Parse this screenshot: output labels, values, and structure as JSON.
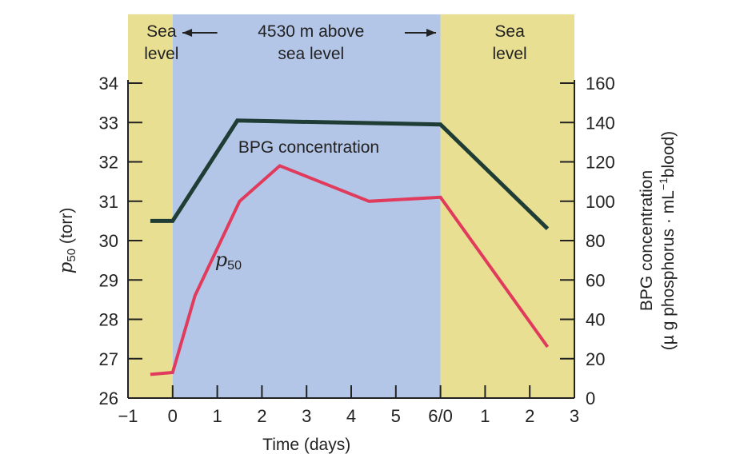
{
  "chart_data": {
    "type": "line",
    "xlabel": "Time (days)",
    "x_ticks": [
      {
        "x": -1,
        "label": "−1"
      },
      {
        "x": 0,
        "label": "0"
      },
      {
        "x": 1,
        "label": "1"
      },
      {
        "x": 2,
        "label": "2"
      },
      {
        "x": 3,
        "label": "3"
      },
      {
        "x": 4,
        "label": "4"
      },
      {
        "x": 5,
        "label": "5"
      },
      {
        "x": 6,
        "label": "6/0"
      },
      {
        "x": 7,
        "label": "1"
      },
      {
        "x": 8,
        "label": "2"
      },
      {
        "x": 9,
        "label": "3"
      }
    ],
    "xlim": [
      -1,
      9
    ],
    "y_left": {
      "label_symbol": "p",
      "label_sub": "50",
      "label_unit": " (torr)",
      "lim": [
        26,
        34
      ],
      "ticks": [
        "26",
        "27",
        "28",
        "29",
        "30",
        "31",
        "32",
        "33",
        "34"
      ]
    },
    "y_right": {
      "label_line1": "BPG concentration",
      "label_line2_a": "(µ g phosphorus · mL",
      "label_line2_sup": "−1",
      "label_line2_b": "blood)",
      "lim": [
        0,
        160
      ],
      "ticks": [
        "0",
        "20",
        "40",
        "60",
        "80",
        "100",
        "120",
        "140",
        "160"
      ]
    },
    "regions": [
      {
        "name": "sea-level-start",
        "x": [
          -1,
          0
        ],
        "color": "#e8df92",
        "label_lines": [
          "Sea",
          "level"
        ]
      },
      {
        "name": "altitude",
        "x": [
          0,
          6
        ],
        "color": "#b4c6e7",
        "label_lines": [
          "4530 m above",
          "sea level"
        ]
      },
      {
        "name": "sea-level-end",
        "x": [
          6,
          9
        ],
        "color": "#e8df92",
        "label_lines": [
          "Sea",
          "level"
        ]
      }
    ],
    "series": [
      {
        "key": "bpg",
        "name": "BPG concentration",
        "axis": "right",
        "color": "#1f3d35",
        "points": [
          [
            -0.5,
            90
          ],
          [
            0,
            90
          ],
          [
            1.45,
            141
          ],
          [
            6,
            139
          ],
          [
            8.4,
            86
          ]
        ]
      },
      {
        "key": "p50",
        "axis": "left",
        "color": "#e03a5c",
        "points": [
          [
            -0.5,
            26.6
          ],
          [
            0,
            26.65
          ],
          [
            0.5,
            28.6
          ],
          [
            1.5,
            31.0
          ],
          [
            2.4,
            31.9
          ],
          [
            4.4,
            31.0
          ],
          [
            6,
            31.1
          ],
          [
            8.4,
            27.3
          ]
        ]
      }
    ],
    "series_labels": {
      "bpg": "BPG concentration",
      "p50_symbol": "p",
      "p50_sub": "50"
    },
    "grid": false,
    "legend": "none"
  }
}
